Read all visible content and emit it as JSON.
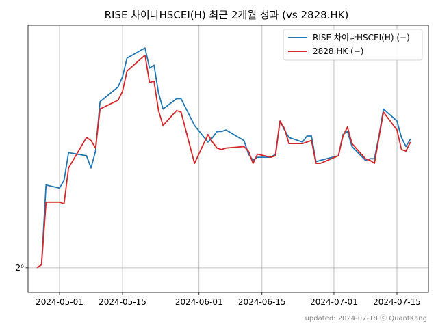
{
  "chart_data": {
    "type": "line",
    "title": "RISE 차이나HSCEI(H) 최근 2개월 성과 (vs 2828.HK)",
    "xlabel": "",
    "ylabel": "",
    "y_scale": "log2",
    "y_ticks": [
      {
        "value": 1,
        "label": "2⁰"
      }
    ],
    "x_ticks": [
      "2024-05-01",
      "2024-05-15",
      "2024-06-01",
      "2024-06-15",
      "2024-07-01",
      "2024-07-15"
    ],
    "grid": "x-only",
    "legend_position": "top-right",
    "series": [
      {
        "name": "RISE 차이나HSCEI(H) (−)",
        "color": "#1f77b4",
        "points": [
          [
            "2024-04-26",
            1.0
          ],
          [
            "2024-04-27",
            1.002
          ],
          [
            "2024-04-28",
            1.052
          ],
          [
            "2024-05-01",
            1.05
          ],
          [
            "2024-05-02",
            1.055
          ],
          [
            "2024-05-03",
            1.073
          ],
          [
            "2024-05-07",
            1.071
          ],
          [
            "2024-05-08",
            1.063
          ],
          [
            "2024-05-09",
            1.074
          ],
          [
            "2024-05-10",
            1.107
          ],
          [
            "2024-05-14",
            1.117
          ],
          [
            "2024-05-15",
            1.124
          ],
          [
            "2024-05-16",
            1.137
          ],
          [
            "2024-05-20",
            1.144
          ],
          [
            "2024-05-21",
            1.13
          ],
          [
            "2024-05-22",
            1.132
          ],
          [
            "2024-05-23",
            1.113
          ],
          [
            "2024-05-24",
            1.102
          ],
          [
            "2024-05-27",
            1.109
          ],
          [
            "2024-05-28",
            1.109
          ],
          [
            "2024-05-31",
            1.091
          ],
          [
            "2024-06-03",
            1.08
          ],
          [
            "2024-06-04",
            1.083
          ],
          [
            "2024-06-05",
            1.087
          ],
          [
            "2024-06-06",
            1.087
          ],
          [
            "2024-06-07",
            1.088
          ],
          [
            "2024-06-11",
            1.081
          ],
          [
            "2024-06-12",
            1.072
          ],
          [
            "2024-06-13",
            1.068
          ],
          [
            "2024-06-14",
            1.07
          ],
          [
            "2024-06-17",
            1.07
          ],
          [
            "2024-06-18",
            1.072
          ],
          [
            "2024-06-19",
            1.094
          ],
          [
            "2024-06-20",
            1.088
          ],
          [
            "2024-06-21",
            1.083
          ],
          [
            "2024-06-24",
            1.08
          ],
          [
            "2024-06-25",
            1.084
          ],
          [
            "2024-06-26",
            1.084
          ],
          [
            "2024-06-27",
            1.067
          ],
          [
            "2024-06-28",
            1.068
          ],
          [
            "2024-07-02",
            1.071
          ],
          [
            "2024-07-03",
            1.085
          ],
          [
            "2024-07-04",
            1.087
          ],
          [
            "2024-07-05",
            1.077
          ],
          [
            "2024-07-08",
            1.068
          ],
          [
            "2024-07-09",
            1.069
          ],
          [
            "2024-07-10",
            1.069
          ],
          [
            "2024-07-11",
            1.084
          ],
          [
            "2024-07-12",
            1.102
          ],
          [
            "2024-07-15",
            1.094
          ],
          [
            "2024-07-16",
            1.083
          ],
          [
            "2024-07-17",
            1.077
          ],
          [
            "2024-07-18",
            1.082
          ]
        ]
      },
      {
        "name": "2828.HK (−)",
        "color": "#d62728",
        "points": [
          [
            "2024-04-26",
            1.0
          ],
          [
            "2024-04-27",
            1.002
          ],
          [
            "2024-04-28",
            1.041
          ],
          [
            "2024-05-01",
            1.041
          ],
          [
            "2024-05-02",
            1.04
          ],
          [
            "2024-05-03",
            1.063
          ],
          [
            "2024-05-07",
            1.083
          ],
          [
            "2024-05-08",
            1.081
          ],
          [
            "2024-05-09",
            1.076
          ],
          [
            "2024-05-10",
            1.102
          ],
          [
            "2024-05-14",
            1.108
          ],
          [
            "2024-05-15",
            1.114
          ],
          [
            "2024-05-16",
            1.128
          ],
          [
            "2024-05-20",
            1.139
          ],
          [
            "2024-05-21",
            1.12
          ],
          [
            "2024-05-22",
            1.121
          ],
          [
            "2024-05-23",
            1.101
          ],
          [
            "2024-05-24",
            1.091
          ],
          [
            "2024-05-27",
            1.101
          ],
          [
            "2024-05-28",
            1.1
          ],
          [
            "2024-05-31",
            1.066
          ],
          [
            "2024-06-03",
            1.085
          ],
          [
            "2024-06-04",
            1.08
          ],
          [
            "2024-06-05",
            1.076
          ],
          [
            "2024-06-06",
            1.075
          ],
          [
            "2024-06-07",
            1.076
          ],
          [
            "2024-06-11",
            1.077
          ],
          [
            "2024-06-12",
            1.074
          ],
          [
            "2024-06-13",
            1.066
          ],
          [
            "2024-06-14",
            1.072
          ],
          [
            "2024-06-17",
            1.07
          ],
          [
            "2024-06-18",
            1.071
          ],
          [
            "2024-06-19",
            1.094
          ],
          [
            "2024-06-20",
            1.089
          ],
          [
            "2024-06-21",
            1.079
          ],
          [
            "2024-06-24",
            1.079
          ],
          [
            "2024-06-25",
            1.08
          ],
          [
            "2024-06-26",
            1.081
          ],
          [
            "2024-06-27",
            1.066
          ],
          [
            "2024-06-28",
            1.066
          ],
          [
            "2024-07-02",
            1.071
          ],
          [
            "2024-07-03",
            1.084
          ],
          [
            "2024-07-04",
            1.09
          ],
          [
            "2024-07-05",
            1.079
          ],
          [
            "2024-07-08",
            1.069
          ],
          [
            "2024-07-09",
            1.068
          ],
          [
            "2024-07-10",
            1.066
          ],
          [
            "2024-07-11",
            1.083
          ],
          [
            "2024-07-12",
            1.1
          ],
          [
            "2024-07-15",
            1.088
          ],
          [
            "2024-07-16",
            1.075
          ],
          [
            "2024-07-17",
            1.074
          ],
          [
            "2024-07-18",
            1.08
          ]
        ]
      }
    ]
  },
  "footer": "updated: 2024-07-18 ⓒ QuantKang"
}
